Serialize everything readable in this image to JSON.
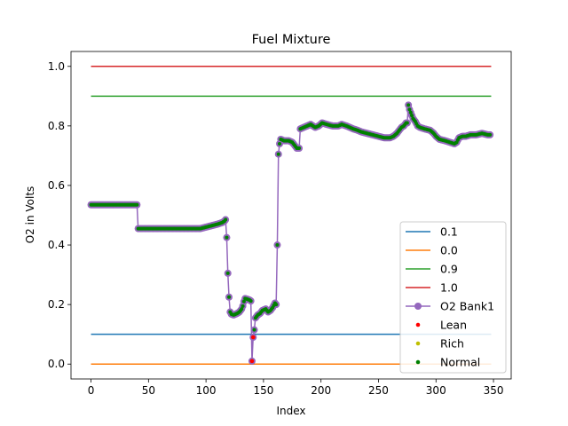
{
  "chart_data": {
    "type": "line",
    "title": "Fuel Mixture",
    "xlabel": "Index",
    "ylabel": "O2 in Volts",
    "xlim": [
      -17.4,
      365.4
    ],
    "ylim": [
      -0.05,
      1.05
    ],
    "xticks": [
      0,
      50,
      100,
      150,
      200,
      250,
      300,
      350
    ],
    "yticks": [
      0.0,
      0.2,
      0.4,
      0.6,
      0.8,
      1.0
    ],
    "ytick_labels": [
      "0.0",
      "0.2",
      "0.4",
      "0.6",
      "0.8",
      "1.0"
    ],
    "grid": false,
    "legend_position": "lower-right",
    "reference_lines": [
      {
        "name": "0.1",
        "value": 0.1,
        "color": "#1f77b4"
      },
      {
        "name": "0.0",
        "value": 0.0,
        "color": "#ff7f0e"
      },
      {
        "name": "0.9",
        "value": 0.9,
        "color": "#2ca02c"
      },
      {
        "name": "1.0",
        "value": 1.0,
        "color": "#d62728"
      }
    ],
    "reference_x_range": [
      0,
      348
    ],
    "series": [
      {
        "name": "O2 Bank1",
        "color": "#9467bd",
        "marker_color": "#008000",
        "points": [
          [
            0,
            0.535
          ],
          [
            40,
            0.535
          ],
          [
            41,
            0.455
          ],
          [
            95,
            0.455
          ],
          [
            100,
            0.46
          ],
          [
            105,
            0.465
          ],
          [
            110,
            0.47
          ],
          [
            114,
            0.475
          ],
          [
            116,
            0.48
          ],
          [
            117,
            0.485
          ],
          [
            118,
            0.425
          ],
          [
            119,
            0.305
          ],
          [
            120,
            0.225
          ],
          [
            121,
            0.175
          ],
          [
            122,
            0.168
          ],
          [
            124,
            0.165
          ],
          [
            127,
            0.17
          ],
          [
            129,
            0.175
          ],
          [
            131,
            0.185
          ],
          [
            132,
            0.195
          ],
          [
            133,
            0.21
          ],
          [
            134,
            0.22
          ],
          [
            136,
            0.218
          ],
          [
            138,
            0.215
          ],
          [
            139,
            0.212
          ],
          [
            140,
            0.01
          ],
          [
            141,
            0.09
          ],
          [
            142,
            0.115
          ],
          [
            143,
            0.155
          ],
          [
            145,
            0.165
          ],
          [
            147,
            0.17
          ],
          [
            149,
            0.18
          ],
          [
            152,
            0.185
          ],
          [
            154,
            0.175
          ],
          [
            156,
            0.18
          ],
          [
            158,
            0.19
          ],
          [
            160,
            0.205
          ],
          [
            161,
            0.2
          ],
          [
            162,
            0.4
          ],
          [
            163,
            0.705
          ],
          [
            164,
            0.74
          ],
          [
            165,
            0.755
          ],
          [
            168,
            0.75
          ],
          [
            172,
            0.75
          ],
          [
            175,
            0.745
          ],
          [
            177,
            0.735
          ],
          [
            179,
            0.725
          ],
          [
            181,
            0.725
          ],
          [
            182,
            0.79
          ],
          [
            185,
            0.795
          ],
          [
            188,
            0.8
          ],
          [
            191,
            0.805
          ],
          [
            193,
            0.8
          ],
          [
            195,
            0.795
          ],
          [
            198,
            0.8
          ],
          [
            201,
            0.81
          ],
          [
            205,
            0.805
          ],
          [
            210,
            0.8
          ],
          [
            215,
            0.8
          ],
          [
            218,
            0.805
          ],
          [
            222,
            0.8
          ],
          [
            225,
            0.795
          ],
          [
            228,
            0.79
          ],
          [
            232,
            0.785
          ],
          [
            235,
            0.78
          ],
          [
            240,
            0.775
          ],
          [
            245,
            0.77
          ],
          [
            250,
            0.765
          ],
          [
            255,
            0.76
          ],
          [
            260,
            0.76
          ],
          [
            263,
            0.765
          ],
          [
            266,
            0.775
          ],
          [
            268,
            0.785
          ],
          [
            270,
            0.795
          ],
          [
            272,
            0.8
          ],
          [
            274,
            0.81
          ],
          [
            275,
            0.81
          ],
          [
            276,
            0.87
          ],
          [
            277,
            0.855
          ],
          [
            278,
            0.845
          ],
          [
            279,
            0.835
          ],
          [
            280,
            0.825
          ],
          [
            282,
            0.815
          ],
          [
            284,
            0.8
          ],
          [
            286,
            0.795
          ],
          [
            290,
            0.79
          ],
          [
            295,
            0.785
          ],
          [
            298,
            0.775
          ],
          [
            300,
            0.765
          ],
          [
            303,
            0.755
          ],
          [
            308,
            0.75
          ],
          [
            312,
            0.745
          ],
          [
            316,
            0.74
          ],
          [
            318,
            0.745
          ],
          [
            320,
            0.76
          ],
          [
            323,
            0.765
          ],
          [
            326,
            0.765
          ],
          [
            330,
            0.77
          ],
          [
            335,
            0.77
          ],
          [
            340,
            0.775
          ],
          [
            345,
            0.77
          ],
          [
            347,
            0.77
          ]
        ],
        "lean_points": [
          [
            140,
            0.01
          ],
          [
            141,
            0.09
          ]
        ]
      }
    ],
    "legend": [
      {
        "label": "0.1",
        "kind": "line",
        "color": "#1f77b4"
      },
      {
        "label": "0.0",
        "kind": "line",
        "color": "#ff7f0e"
      },
      {
        "label": "0.9",
        "kind": "line",
        "color": "#2ca02c"
      },
      {
        "label": "1.0",
        "kind": "line",
        "color": "#d62728"
      },
      {
        "label": "O2 Bank1",
        "kind": "line-marker",
        "color": "#9467bd"
      },
      {
        "label": "Lean",
        "kind": "dot",
        "color": "#ff0000"
      },
      {
        "label": "Rich",
        "kind": "dot",
        "color": "#bfbf00"
      },
      {
        "label": "Normal",
        "kind": "dot",
        "color": "#008000"
      }
    ]
  }
}
